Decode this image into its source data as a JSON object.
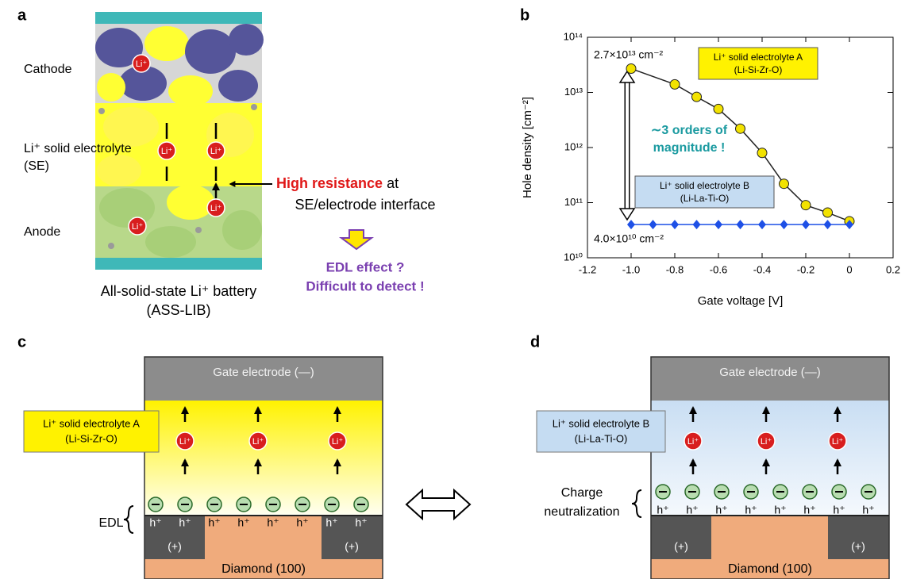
{
  "panel_labels": [
    "a",
    "b",
    "c",
    "d"
  ],
  "panel_a": {
    "cathode": "Cathode",
    "electrolyte": "Li⁺ solid electrolyte",
    "electrolyte_abbr": "(SE)",
    "anode": "Anode",
    "ion": "Li⁺",
    "resistance": "High  resistance",
    "resistance_suffix": "at",
    "interface": "SE/electrode interface",
    "question": "EDL effect ?",
    "difficulty": "Difficult to detect !",
    "caption": "All-solid-state Li⁺ battery",
    "caption_abbr": "(ASS-LIB)"
  },
  "chart_data": {
    "type": "line",
    "ylabel": "Hole density  [cm⁻²]",
    "xlabel": "Gate voltage [V]",
    "xlim": [
      -1.2,
      0.2
    ],
    "xticks": [
      -1.2,
      {
        "value": -1,
        "label": "-1.0"
      },
      -0.8,
      -0.6,
      -0.4,
      -0.2,
      0,
      0.2
    ],
    "ylim": [
      10000000000.0,
      100000000000000.0
    ],
    "yscale": "log",
    "yticks": [
      {
        "value": 10000000000.0,
        "label": "10¹⁰"
      },
      {
        "value": 100000000000.0,
        "label": "10¹¹"
      },
      {
        "value": 1000000000000.0,
        "label": "10¹²"
      },
      {
        "value": 10000000000000.0,
        "label": "10¹³"
      },
      {
        "value": 100000000000000.0,
        "label": "10¹⁴"
      }
    ],
    "series": [
      {
        "name": "Li⁺ solid electrolyte A",
        "formula": "(Li-Si-Zr-O)",
        "color": "#f2e200",
        "legend_color": "#fff200",
        "marker": "circle",
        "x": [
          -1,
          -0.8,
          -0.7,
          -0.6,
          -0.5,
          -0.4,
          -0.3,
          -0.2,
          -0.1,
          0
        ],
        "values": [
          27000000000000.0,
          14000000000000.0,
          8300000000000.0,
          5000000000000.0,
          2200000000000.0,
          800000000000.0,
          220000000000.0,
          90000000000.0,
          66000000000.0,
          46000000000.0
        ]
      },
      {
        "name": "Li⁺ solid electrolyte B",
        "formula": "(Li-La-Ti-O)",
        "color": "#1e50e6",
        "legend_color": "#c5dcf2",
        "marker": "diamond",
        "x": [
          -1,
          -0.9,
          -0.8,
          -0.7,
          -0.6,
          -0.5,
          -0.4,
          -0.3,
          -0.2,
          -0.1,
          0
        ],
        "values": [
          40000000000.0,
          40000000000.0,
          40000000000.0,
          40000000000.0,
          40000000000.0,
          40000000000.0,
          40000000000.0,
          40000000000.0,
          40000000000.0,
          40000000000.0,
          40000000000.0
        ]
      }
    ],
    "annotations": [
      "2.7×10¹³ cm⁻²",
      "4.0×10¹⁰ cm⁻²"
    ],
    "callout": [
      "∼3 orders of",
      "magnitude !"
    ]
  },
  "panel_c": {
    "gate": "Gate electrode (—)",
    "electrolyte": "Li⁺ solid electrolyte A",
    "formula": "(Li-Si-Zr-O)",
    "ion": "Li⁺",
    "edl": "EDL",
    "hole": "h⁺",
    "contact": "(+)",
    "substrate": "Diamond (100)"
  },
  "panel_d": {
    "gate": "Gate electrode (—)",
    "electrolyte": "Li⁺ solid electrolyte B",
    "formula": "(Li-La-Ti-O)",
    "ion": "Li⁺",
    "neutralization": [
      "Charge",
      "neutralization"
    ],
    "hole": "h⁺",
    "contact": "(+)",
    "substrate": "Diamond (100)"
  }
}
